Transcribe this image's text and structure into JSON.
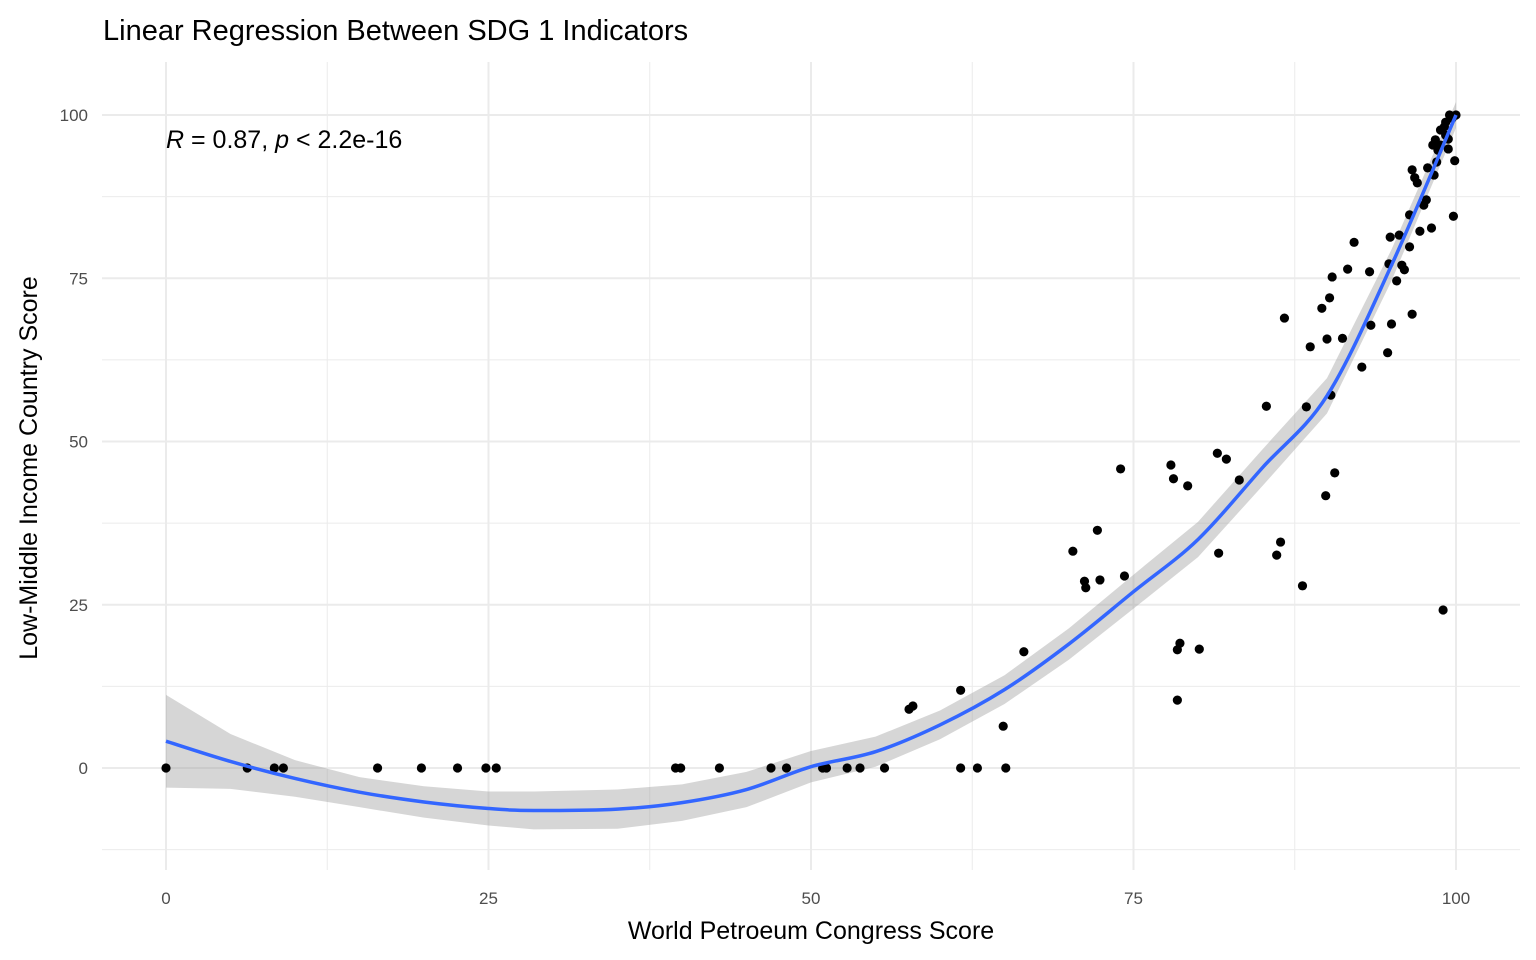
{
  "chart_data": {
    "type": "scatter",
    "title": "Linear Regression Between SDG 1 Indicators",
    "xlabel": "World Petroeum Congress Score",
    "ylabel": "Low-Middle Income Country Score",
    "xlim": [
      -10,
      105
    ],
    "ylim": [
      -16,
      108
    ],
    "xticks": [
      0,
      25,
      50,
      75,
      100
    ],
    "yticks": [
      0,
      25,
      50,
      75,
      100
    ],
    "xtick_labels": [
      "0",
      "25",
      "50",
      "75",
      "100"
    ],
    "ytick_labels": [
      "0",
      "25",
      "50",
      "75",
      "100"
    ],
    "grid": true,
    "annotation": {
      "r_label": "R",
      "r_text": " = 0.87, ",
      "p_label": "p",
      "p_text": " < 2.2e-16"
    },
    "colors": {
      "point": "#000000",
      "fit": "#3366FF",
      "ribbon": "#999999",
      "grid": "#ebebeb"
    },
    "points": [
      [
        0,
        0
      ],
      [
        6.3,
        0
      ],
      [
        8.4,
        0
      ],
      [
        9.1,
        0
      ],
      [
        16.4,
        0
      ],
      [
        19.8,
        0
      ],
      [
        22.6,
        0
      ],
      [
        24.8,
        0
      ],
      [
        25.6,
        0
      ],
      [
        39.5,
        0
      ],
      [
        39.9,
        0
      ],
      [
        42.9,
        0
      ],
      [
        46.9,
        0
      ],
      [
        48.1,
        0
      ],
      [
        50.9,
        0
      ],
      [
        51.2,
        0
      ],
      [
        52.8,
        0
      ],
      [
        53.8,
        0
      ],
      [
        55.7,
        0
      ],
      [
        61.6,
        0
      ],
      [
        62.9,
        0
      ],
      [
        65.1,
        0
      ],
      [
        57.6,
        9.0
      ],
      [
        57.9,
        9.5
      ],
      [
        61.6,
        11.9
      ],
      [
        64.9,
        6.4
      ],
      [
        66.5,
        17.8
      ],
      [
        70.3,
        33.2
      ],
      [
        71.2,
        28.6
      ],
      [
        71.3,
        27.6
      ],
      [
        72.2,
        36.4
      ],
      [
        72.4,
        28.8
      ],
      [
        74.0,
        45.8
      ],
      [
        74.3,
        29.4
      ],
      [
        77.9,
        46.4
      ],
      [
        78.1,
        44.3
      ],
      [
        78.4,
        10.4
      ],
      [
        78.4,
        18.1
      ],
      [
        78.6,
        19.1
      ],
      [
        79.2,
        43.2
      ],
      [
        80.1,
        18.2
      ],
      [
        81.5,
        48.2
      ],
      [
        81.6,
        32.9
      ],
      [
        82.2,
        47.3
      ],
      [
        83.2,
        44.1
      ],
      [
        85.3,
        55.4
      ],
      [
        86.1,
        32.6
      ],
      [
        86.4,
        34.6
      ],
      [
        86.7,
        68.9
      ],
      [
        88.1,
        27.9
      ],
      [
        88.4,
        55.3
      ],
      [
        88.7,
        64.5
      ],
      [
        89.6,
        70.4
      ],
      [
        89.9,
        41.7
      ],
      [
        90.0,
        65.7
      ],
      [
        90.2,
        72.0
      ],
      [
        90.3,
        57.1
      ],
      [
        90.4,
        75.2
      ],
      [
        90.6,
        45.2
      ],
      [
        91.2,
        65.8
      ],
      [
        91.6,
        76.4
      ],
      [
        92.1,
        80.5
      ],
      [
        92.7,
        61.4
      ],
      [
        93.3,
        76.0
      ],
      [
        93.4,
        67.8
      ],
      [
        94.7,
        63.6
      ],
      [
        94.8,
        77.2
      ],
      [
        94.9,
        81.3
      ],
      [
        95.0,
        68.0
      ],
      [
        95.4,
        74.6
      ],
      [
        95.6,
        81.6
      ],
      [
        95.8,
        77.0
      ],
      [
        96.0,
        76.3
      ],
      [
        96.4,
        79.8
      ],
      [
        96.6,
        69.5
      ],
      [
        96.4,
        84.7
      ],
      [
        96.6,
        91.6
      ],
      [
        96.8,
        90.4
      ],
      [
        97.0,
        89.6
      ],
      [
        97.2,
        82.2
      ],
      [
        97.5,
        86.2
      ],
      [
        97.7,
        87.0
      ],
      [
        97.8,
        91.9
      ],
      [
        98.1,
        82.7
      ],
      [
        98.3,
        90.8
      ],
      [
        98.2,
        95.4
      ],
      [
        98.4,
        96.2
      ],
      [
        98.6,
        94.6
      ],
      [
        98.8,
        97.7
      ],
      [
        99.0,
        24.2
      ],
      [
        99.1,
        98.2
      ],
      [
        99.2,
        98.9
      ],
      [
        99.4,
        94.8
      ],
      [
        99.5,
        100
      ],
      [
        99.8,
        84.5
      ],
      [
        99.9,
        93.0
      ],
      [
        100,
        100
      ],
      [
        99.7,
        99.5
      ],
      [
        99.2,
        96.9
      ],
      [
        98.8,
        95.4
      ],
      [
        98.5,
        92.8
      ],
      [
        99.4,
        96.3
      ]
    ],
    "fit": {
      "x": [
        0,
        5,
        10,
        15,
        20,
        25,
        28.5,
        35,
        40,
        45,
        50,
        55,
        60,
        65,
        70,
        75,
        80,
        85,
        90,
        95,
        100
      ],
      "y": [
        4.1,
        1.0,
        -1.6,
        -3.7,
        -5.2,
        -6.2,
        -6.5,
        -6.3,
        -5.3,
        -3.3,
        0.2,
        2.5,
        6.6,
        12.0,
        19.0,
        27.0,
        35.0,
        46.0,
        57.0,
        77.0,
        100
      ],
      "lower": [
        -3.0,
        -3.2,
        -4.4,
        -6.0,
        -7.6,
        -8.8,
        -9.4,
        -9.3,
        -8.1,
        -6.0,
        -2.2,
        0.2,
        4.4,
        9.8,
        16.6,
        24.4,
        32.3,
        43.2,
        54.3,
        74.6,
        98.0
      ],
      "upper": [
        11.2,
        5.2,
        1.2,
        -1.4,
        -2.8,
        -3.6,
        -3.6,
        -3.3,
        -2.5,
        -0.6,
        2.6,
        4.8,
        8.8,
        14.2,
        21.4,
        29.6,
        37.7,
        48.8,
        59.7,
        79.4,
        102.0
      ]
    }
  }
}
